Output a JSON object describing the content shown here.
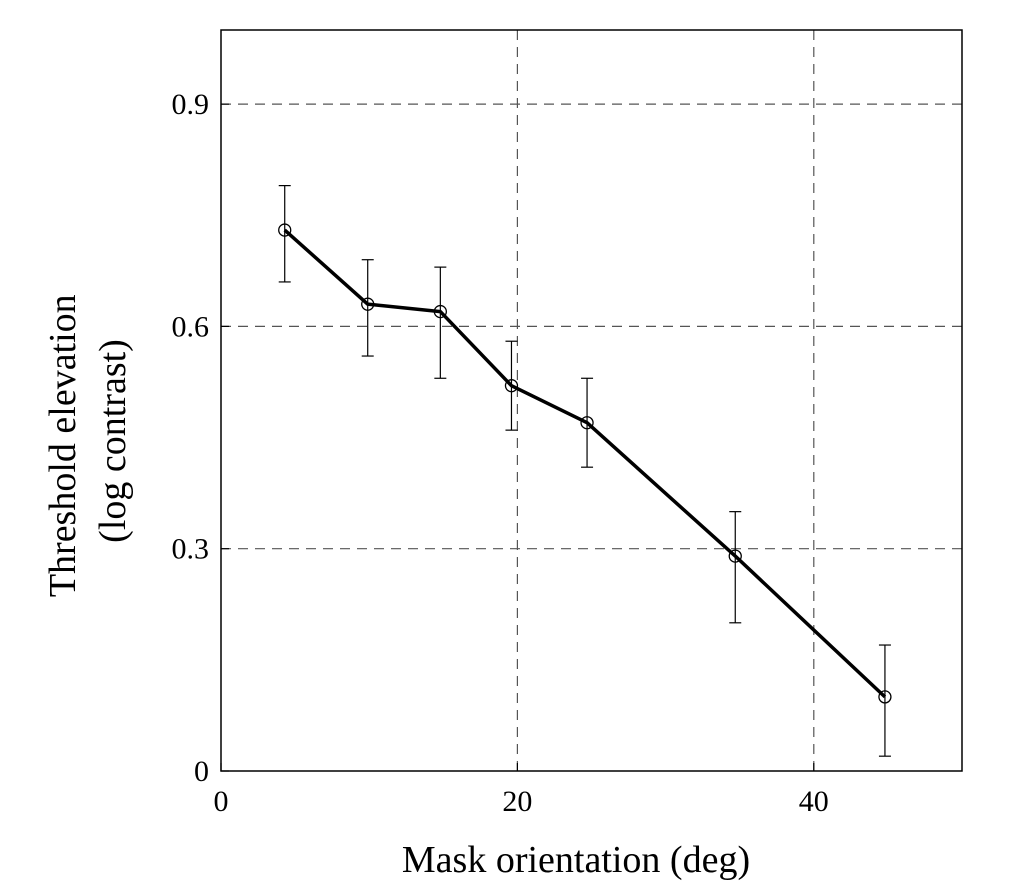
{
  "chart_data": {
    "type": "line",
    "title": "",
    "xlabel": "Mask orientation (deg)",
    "ylabel_lines": [
      "Threshold elevation",
      "(log contrast)"
    ],
    "xlim": [
      0,
      50
    ],
    "ylim": [
      0,
      1.0
    ],
    "xticks": [
      0,
      20,
      40
    ],
    "xtick_labels": [
      "0",
      "20",
      "40"
    ],
    "yticks": [
      0,
      0.3,
      0.6,
      0.9
    ],
    "ytick_labels": [
      "0",
      "0.3",
      "0.6",
      "0.9"
    ],
    "grid": true,
    "grid_style": "dashed",
    "series": [
      {
        "x": [
          4.3,
          9.9,
          14.8,
          19.6,
          24.7,
          34.7,
          44.8
        ],
        "y": [
          0.73,
          0.63,
          0.62,
          0.52,
          0.47,
          0.29,
          0.1
        ],
        "yerr_low": [
          0.66,
          0.56,
          0.53,
          0.46,
          0.41,
          0.2,
          0.02
        ],
        "yerr_high": [
          0.79,
          0.69,
          0.68,
          0.58,
          0.53,
          0.35,
          0.17
        ],
        "marker": "open-circle",
        "line_color": "#000000"
      }
    ]
  }
}
